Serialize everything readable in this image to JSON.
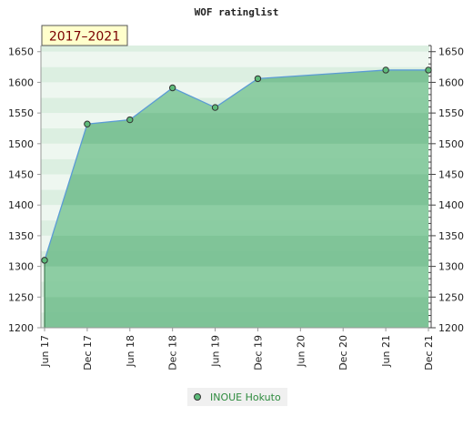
{
  "chart_data": {
    "type": "area",
    "title": "WOF ratinglist",
    "badge": "2017–2021",
    "x_tick_labels": [
      "Jun 17",
      "Dec 17",
      "Jun 18",
      "Dec 18",
      "Jun 19",
      "Dec 19",
      "Jun 20",
      "Dec 20",
      "Jun 21",
      "Dec 21"
    ],
    "ylim": [
      1200,
      1660
    ],
    "y_ticks": [
      1200,
      1250,
      1300,
      1350,
      1400,
      1450,
      1500,
      1550,
      1600,
      1650
    ],
    "series": [
      {
        "name": "INOUE Hokuto",
        "points": [
          {
            "x": "Jun 17",
            "y": 1310
          },
          {
            "x": "Dec 17",
            "y": 1532
          },
          {
            "x": "Jun 18",
            "y": 1539
          },
          {
            "x": "Dec 18",
            "y": 1591
          },
          {
            "x": "Jun 19",
            "y": 1559
          },
          {
            "x": "Dec 19",
            "y": 1606
          },
          {
            "x": "Jun 21",
            "y": 1620
          },
          {
            "x": "Dec 21",
            "y": 1620
          }
        ]
      }
    ],
    "grid": true,
    "legend_position": "bottom-center",
    "colors": {
      "area_fill": "#7cc496",
      "line": "#5b9bd5",
      "marker": "#5dbb7a",
      "band_light": "#eef7f0",
      "band_dark": "#dcefe1",
      "badge_bg": "#ffffcc",
      "badge_text": "#7a0000",
      "legend_bg": "#f0f0f0",
      "legend_text": "#2e8b3e"
    }
  }
}
